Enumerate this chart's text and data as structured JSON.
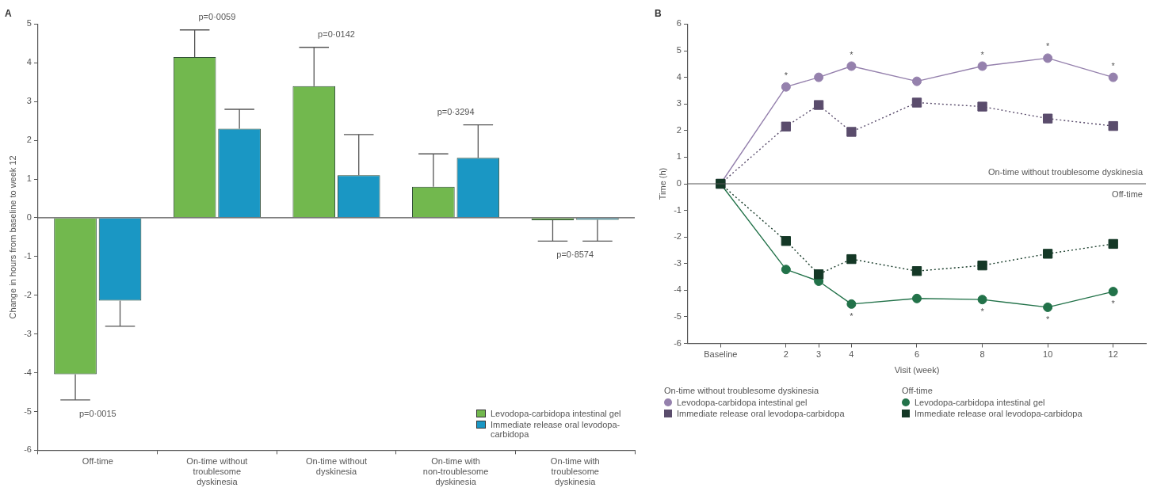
{
  "chart_data": [
    {
      "type": "bar",
      "title": "A",
      "ylabel": "Change in hours from baseline to week 12",
      "categories": [
        "Off-time",
        "On-time without troublesome dyskinesia",
        "On-time without dyskinesia",
        "On-time with non-troublesome dyskinesia",
        "On-time with troublesome dyskinesia"
      ],
      "series": [
        {
          "name": "Levodopa-carbidopa intestinal gel",
          "color": "#72b84e",
          "values": [
            -4.04,
            4.15,
            3.4,
            0.8,
            -0.06
          ],
          "errors": [
            [
              -4.7,
              -4.04
            ],
            [
              4.15,
              4.85
            ],
            [
              3.4,
              4.4
            ],
            [
              0.8,
              1.65
            ],
            [
              -0.6,
              -0.06
            ]
          ]
        },
        {
          "name": "Immediate release oral levodopa-carbidopa",
          "color": "#1a97c4",
          "values": [
            -2.14,
            2.3,
            1.1,
            1.55,
            -0.05
          ],
          "errors": [
            [
              -2.8,
              -2.14
            ],
            [
              2.3,
              2.8
            ],
            [
              1.1,
              2.15
            ],
            [
              1.55,
              2.4
            ],
            [
              -0.6,
              -0.05
            ]
          ]
        }
      ],
      "ylim": [
        -6,
        5
      ],
      "yticks": [
        -6,
        -5,
        -4,
        -3,
        -2,
        -1,
        0,
        1,
        2,
        3,
        4,
        5
      ],
      "ref_lines": [
        {
          "axis": "y",
          "value": 0
        }
      ],
      "annotations": [
        "p=0·0015",
        "p=0·0059",
        "p=0·0142",
        "p=0·3294",
        "p=0·8574"
      ],
      "grid": false,
      "legend": "bottom right"
    },
    {
      "type": "line",
      "title": "B",
      "xlabel": "Visit (week)",
      "ylabel": "Time (h)",
      "x": [
        0,
        2,
        3,
        4,
        6,
        8,
        10,
        12
      ],
      "series": [
        {
          "name": "Levodopa-carbidopa intestinal gel",
          "color": "#9581ad",
          "marker": "circle",
          "line_style": "solid",
          "values": [
            0,
            3.64,
            4.0,
            4.42,
            3.85,
            4.42,
            4.72,
            4.0
          ],
          "value_labels": [
            null,
            "*",
            null,
            "*",
            null,
            "*",
            "*",
            "*"
          ]
        },
        {
          "name": "Immediate release oral levodopa-carbidopa",
          "color": "#5a4c6c",
          "marker": "square",
          "line_style": "dotted",
          "values": [
            0,
            2.15,
            2.96,
            1.95,
            3.05,
            2.9,
            2.45,
            2.17
          ]
        },
        {
          "name": "Levodopa-carbidopa intestinal gel",
          "color": "#227249",
          "marker": "circle",
          "line_style": "solid",
          "values": [
            0,
            -3.22,
            -3.66,
            -4.52,
            -4.31,
            -4.35,
            -4.64,
            -4.05
          ],
          "value_labels": [
            null,
            null,
            null,
            "*",
            null,
            "*",
            "*",
            "*"
          ]
        },
        {
          "name": "Immediate release oral levodopa-carbidopa",
          "color": "#143826",
          "marker": "square",
          "line_style": "dotted",
          "values": [
            0,
            -2.15,
            -3.4,
            -2.83,
            -3.28,
            -3.07,
            -2.63,
            -2.26
          ]
        }
      ],
      "xlim": [
        -1,
        13
      ],
      "xticks": [
        {
          "value": 0,
          "label": "Baseline"
        },
        2,
        3,
        4,
        6,
        8,
        10,
        12
      ],
      "ylim": [
        -6,
        6
      ],
      "yticks": [
        -6,
        -5,
        -4,
        -3,
        -2,
        -1,
        0,
        1,
        2,
        3,
        4,
        5,
        6
      ],
      "ref_lines": [
        {
          "axis": "y",
          "value": 0
        }
      ],
      "annotations": [
        "On-time without troublesome dyskinesia",
        "Off-time"
      ],
      "grid": false,
      "legend": "bottom"
    }
  ]
}
